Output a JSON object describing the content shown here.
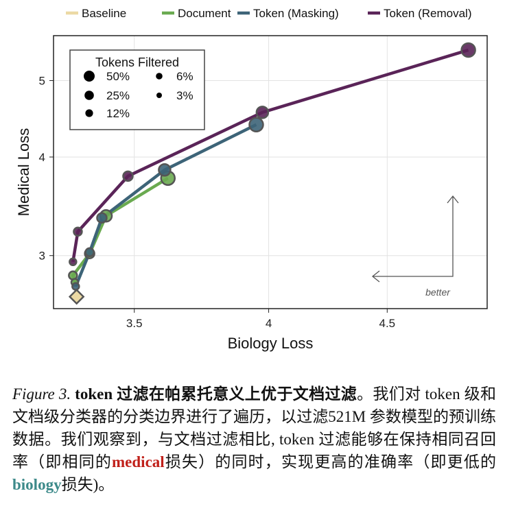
{
  "chart_data": {
    "type": "line",
    "xlabel": "Biology Loss",
    "ylabel": "Medical Loss",
    "x_scale": "log",
    "y_scale": "log",
    "xlim": [
      3.23,
      4.97
    ],
    "ylim": [
      2.57,
      5.7
    ],
    "xticks": [
      3.5,
      4,
      4.5
    ],
    "yticks": [
      3,
      4,
      5
    ],
    "grid": true,
    "legend": {
      "placement": "top",
      "entries": [
        "Baseline",
        "Document",
        "Token (Masking)",
        "Token (Removal)"
      ]
    },
    "size_legend": {
      "title": "Tokens Filtered",
      "entries": [
        "50%",
        "25%",
        "12%",
        "6%",
        "3%"
      ]
    },
    "annotation": "better",
    "series": [
      {
        "name": "Document",
        "color": "#6aaa50",
        "points": [
          {
            "x": 3.619,
            "y": 3.761,
            "filtered": "50%"
          },
          {
            "x": 3.403,
            "y": 3.369,
            "filtered": "25%"
          },
          {
            "x": 3.348,
            "y": 3.018,
            "filtered": "12%"
          },
          {
            "x": 3.293,
            "y": 2.831,
            "filtered": "6%"
          },
          {
            "x": 3.299,
            "y": 2.775,
            "filtered": "3%"
          }
        ]
      },
      {
        "name": "Token (Masking)",
        "color": "#3d6478",
        "points": [
          {
            "x": 3.951,
            "y": 4.396,
            "filtered": "50%"
          },
          {
            "x": 3.607,
            "y": 3.852,
            "filtered": "25%"
          },
          {
            "x": 3.389,
            "y": 3.349,
            "filtered": "12%"
          },
          {
            "x": 3.348,
            "y": 3.03,
            "filtered": "6%"
          },
          {
            "x": 3.302,
            "y": 2.742,
            "filtered": "3%"
          }
        ]
      },
      {
        "name": "Token (Removal)",
        "color": "#5a2458",
        "points": [
          {
            "x": 4.878,
            "y": 5.466,
            "filtered": "50%"
          },
          {
            "x": 3.975,
            "y": 4.557,
            "filtered": "25%"
          },
          {
            "x": 3.478,
            "y": 3.783,
            "filtered": "12%"
          },
          {
            "x": 3.309,
            "y": 3.217,
            "filtered": "6%"
          },
          {
            "x": 3.293,
            "y": 2.946,
            "filtered": "3%"
          }
        ]
      }
    ],
    "baseline": {
      "name": "Baseline",
      "color": "#ecd9a4",
      "x": 3.305,
      "y": 2.661
    }
  },
  "caption": {
    "label": "Figure 3.",
    "title": "token 过滤在帕累托意义上优于文档过滤",
    "body1": "。我们对 token 级和文档级分类器的分类边界进行了遍历，以过滤521M 参数模型的预训练数据。我们观察到，与文档过滤相比, token 过滤能够在保持相同召回率（即相同的",
    "medical": "medical",
    "body2": "损失）的同时，实现更高的准确率（即更低的",
    "biology": "biology",
    "body3": "损失)。"
  }
}
